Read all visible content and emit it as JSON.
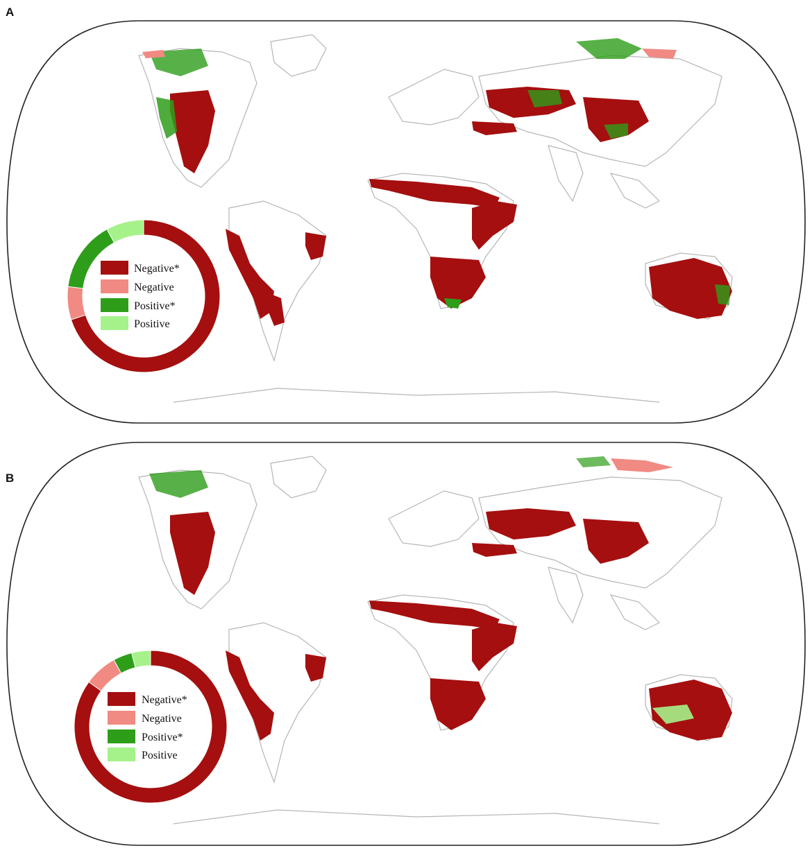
{
  "panels": [
    {
      "letter": "A",
      "legend": [
        {
          "label": "Negative*",
          "color": "#a50f0f"
        },
        {
          "label": "Negative",
          "color": "#f08a82"
        },
        {
          "label": "Positive*",
          "color": "#2e9e1a"
        },
        {
          "label": "Positive",
          "color": "#a6f28a"
        }
      ],
      "ring_fractions": [
        0.7,
        0.07,
        0.15,
        0.08
      ]
    },
    {
      "letter": "B",
      "legend": [
        {
          "label": "Negative*",
          "color": "#a50f0f"
        },
        {
          "label": "Negative",
          "color": "#f08a82"
        },
        {
          "label": "Positive*",
          "color": "#2e9e1a"
        },
        {
          "label": "Positive",
          "color": "#a6f28a"
        }
      ],
      "ring_fractions": [
        0.85,
        0.07,
        0.04,
        0.04
      ]
    }
  ],
  "colors": {
    "coastline": "#b5b5b5",
    "frame": "#222222"
  }
}
